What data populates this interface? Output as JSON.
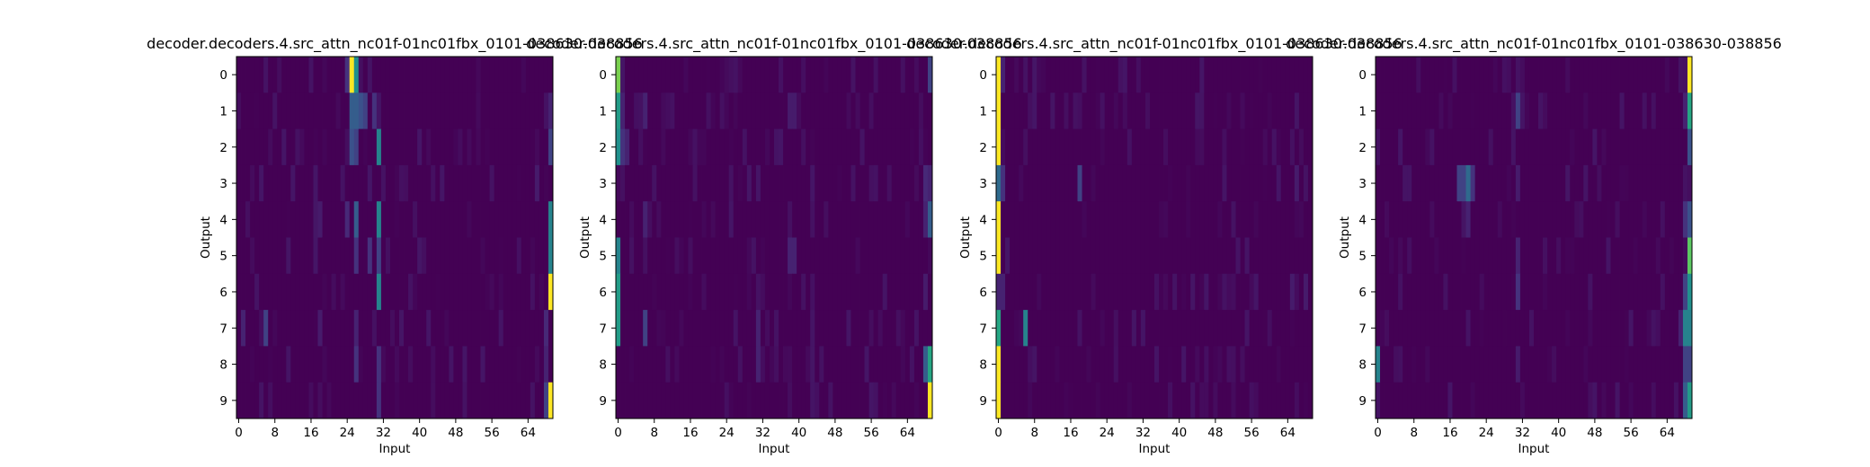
{
  "chart_data": [
    {
      "type": "heatmap",
      "title": "decoder.decoders.4.src_attn_nc01f-01nc01fbx_0101-038630-038856",
      "xlabel": "Input",
      "ylabel": "Output",
      "x_ticks": [
        "0",
        "8",
        "16",
        "24",
        "32",
        "40",
        "48",
        "56",
        "64"
      ],
      "y_ticks": [
        "0",
        "1",
        "2",
        "3",
        "4",
        "5",
        "6",
        "7",
        "8",
        "9"
      ],
      "xlim": [
        0,
        70
      ],
      "rows": 10,
      "columns": 70,
      "colormap": "viridis",
      "peaks": [
        {
          "row": 0,
          "cols": [
            [
              25,
              1.0
            ],
            [
              26,
              0.5
            ],
            [
              24,
              0.15
            ]
          ]
        },
        {
          "row": 1,
          "cols": [
            [
              25,
              0.3
            ],
            [
              26,
              0.3
            ],
            [
              27,
              0.25
            ],
            [
              28,
              0.2
            ],
            [
              30,
              0.15
            ],
            [
              69,
              0.1
            ]
          ]
        },
        {
          "row": 2,
          "cols": [
            [
              25,
              0.25
            ],
            [
              26,
              0.2
            ],
            [
              31,
              0.45
            ],
            [
              69,
              0.2
            ]
          ]
        },
        {
          "row": 3,
          "cols": [
            [
              5,
              0.06
            ],
            [
              17,
              0.06
            ],
            [
              29,
              0.06
            ],
            [
              45,
              0.06
            ],
            [
              66,
              0.08
            ]
          ]
        },
        {
          "row": 4,
          "cols": [
            [
              18,
              0.08
            ],
            [
              24,
              0.12
            ],
            [
              26,
              0.3
            ],
            [
              31,
              0.45
            ],
            [
              69,
              0.45
            ]
          ]
        },
        {
          "row": 5,
          "cols": [
            [
              26,
              0.15
            ],
            [
              29,
              0.15
            ],
            [
              31,
              0.2
            ],
            [
              69,
              0.45
            ]
          ]
        },
        {
          "row": 6,
          "cols": [
            [
              31,
              0.45
            ],
            [
              69,
              1.0
            ]
          ]
        },
        {
          "row": 7,
          "cols": [
            [
              1,
              0.1
            ],
            [
              6,
              0.2
            ],
            [
              18,
              0.08
            ],
            [
              26,
              0.1
            ],
            [
              68,
              0.12
            ]
          ]
        },
        {
          "row": 8,
          "cols": [
            [
              26,
              0.15
            ],
            [
              31,
              0.15
            ],
            [
              50,
              0.06
            ],
            [
              68,
              0.1
            ]
          ]
        },
        {
          "row": 9,
          "cols": [
            [
              31,
              0.15
            ],
            [
              69,
              1.0
            ],
            [
              68,
              0.2
            ]
          ]
        }
      ]
    },
    {
      "type": "heatmap",
      "title": "decoder.decoders.4.src_attn_nc01f-01nc01fbx_0101-038630-038856",
      "xlabel": "Input",
      "ylabel": "Output",
      "x_ticks": [
        "0",
        "8",
        "16",
        "24",
        "32",
        "40",
        "48",
        "56",
        "64"
      ],
      "y_ticks": [
        "0",
        "1",
        "2",
        "3",
        "4",
        "5",
        "6",
        "7",
        "8",
        "9"
      ],
      "xlim": [
        0,
        70
      ],
      "rows": 10,
      "columns": 70,
      "colormap": "viridis",
      "peaks": [
        {
          "row": 0,
          "cols": [
            [
              0,
              0.8
            ],
            [
              69,
              0.2
            ]
          ]
        },
        {
          "row": 1,
          "cols": [
            [
              0,
              0.55
            ],
            [
              1,
              0.1
            ],
            [
              6,
              0.1
            ],
            [
              38,
              0.08
            ],
            [
              39,
              0.08
            ]
          ]
        },
        {
          "row": 2,
          "cols": [
            [
              0,
              0.5
            ],
            [
              1,
              0.15
            ],
            [
              2,
              0.1
            ]
          ]
        },
        {
          "row": 3,
          "cols": [
            [
              8,
              0.05
            ],
            [
              31,
              0.06
            ],
            [
              68,
              0.12
            ],
            [
              69,
              0.1
            ]
          ]
        },
        {
          "row": 4,
          "cols": [
            [
              6,
              0.1
            ],
            [
              25,
              0.06
            ],
            [
              68,
              0.1
            ],
            [
              69,
              0.3
            ]
          ]
        },
        {
          "row": 5,
          "cols": [
            [
              0,
              0.45
            ],
            [
              38,
              0.1
            ],
            [
              39,
              0.1
            ]
          ]
        },
        {
          "row": 6,
          "cols": [
            [
              0,
              0.55
            ],
            [
              31,
              0.05
            ],
            [
              68,
              0.08
            ]
          ]
        },
        {
          "row": 7,
          "cols": [
            [
              0,
              0.55
            ],
            [
              6,
              0.2
            ],
            [
              31,
              0.1
            ]
          ]
        },
        {
          "row": 8,
          "cols": [
            [
              31,
              0.1
            ],
            [
              68,
              0.3
            ],
            [
              69,
              0.6
            ]
          ]
        },
        {
          "row": 9,
          "cols": [
            [
              69,
              1.0
            ]
          ]
        }
      ]
    },
    {
      "type": "heatmap",
      "title": "decoder.decoders.4.src_attn_nc01f-01nc01fbx_0101-038630-038856",
      "xlabel": "Input",
      "ylabel": "Output",
      "x_ticks": [
        "0",
        "8",
        "16",
        "24",
        "32",
        "40",
        "48",
        "56",
        "64"
      ],
      "y_ticks": [
        "0",
        "1",
        "2",
        "3",
        "4",
        "5",
        "6",
        "7",
        "8",
        "9"
      ],
      "xlim": [
        0,
        70
      ],
      "rows": 10,
      "columns": 70,
      "colormap": "viridis",
      "peaks": [
        {
          "row": 0,
          "cols": [
            [
              0,
              1.0
            ],
            [
              1,
              0.1
            ],
            [
              6,
              0.05
            ]
          ]
        },
        {
          "row": 1,
          "cols": [
            [
              0,
              1.0
            ]
          ]
        },
        {
          "row": 2,
          "cols": [
            [
              0,
              1.0
            ]
          ]
        },
        {
          "row": 3,
          "cols": [
            [
              0,
              0.35
            ],
            [
              1,
              0.15
            ],
            [
              18,
              0.2
            ],
            [
              62,
              0.06
            ],
            [
              66,
              0.08
            ]
          ]
        },
        {
          "row": 4,
          "cols": [
            [
              0,
              1.0
            ]
          ]
        },
        {
          "row": 5,
          "cols": [
            [
              0,
              1.0
            ]
          ]
        },
        {
          "row": 6,
          "cols": [
            [
              0,
              0.1
            ],
            [
              1,
              0.1
            ],
            [
              46,
              0.06
            ],
            [
              57,
              0.06
            ],
            [
              65,
              0.08
            ],
            [
              68,
              0.08
            ]
          ]
        },
        {
          "row": 7,
          "cols": [
            [
              0,
              0.6
            ],
            [
              6,
              0.45
            ],
            [
              18,
              0.05
            ]
          ]
        },
        {
          "row": 8,
          "cols": [
            [
              0,
              1.0
            ]
          ]
        },
        {
          "row": 9,
          "cols": [
            [
              0,
              1.0
            ]
          ]
        }
      ]
    },
    {
      "type": "heatmap",
      "title": "decoder.decoders.4.src_attn_nc01f-01nc01fbx_0101-038630-038856",
      "xlabel": "Input",
      "ylabel": "Output",
      "x_ticks": [
        "0",
        "8",
        "16",
        "24",
        "32",
        "40",
        "48",
        "56",
        "64"
      ],
      "y_ticks": [
        "0",
        "1",
        "2",
        "3",
        "4",
        "5",
        "6",
        "7",
        "8",
        "9"
      ],
      "xlim": [
        0,
        70
      ],
      "rows": 10,
      "columns": 70,
      "colormap": "viridis",
      "peaks": [
        {
          "row": 0,
          "cols": [
            [
              69,
              1.0
            ],
            [
              31,
              0.05
            ]
          ]
        },
        {
          "row": 1,
          "cols": [
            [
              31,
              0.2
            ],
            [
              69,
              0.6
            ],
            [
              68,
              0.1
            ]
          ]
        },
        {
          "row": 2,
          "cols": [
            [
              5,
              0.06
            ],
            [
              12,
              0.05
            ],
            [
              69,
              0.25
            ]
          ]
        },
        {
          "row": 3,
          "cols": [
            [
              18,
              0.2
            ],
            [
              19,
              0.2
            ],
            [
              20,
              0.35
            ],
            [
              21,
              0.15
            ],
            [
              31,
              0.08
            ]
          ]
        },
        {
          "row": 4,
          "cols": [
            [
              20,
              0.1
            ],
            [
              69,
              0.25
            ],
            [
              68,
              0.15
            ]
          ]
        },
        {
          "row": 5,
          "cols": [
            [
              31,
              0.1
            ],
            [
              69,
              0.75
            ]
          ]
        },
        {
          "row": 6,
          "cols": [
            [
              31,
              0.15
            ],
            [
              69,
              0.5
            ],
            [
              68,
              0.2
            ]
          ]
        },
        {
          "row": 7,
          "cols": [
            [
              68,
              0.45
            ],
            [
              69,
              0.45
            ],
            [
              67,
              0.1
            ]
          ]
        },
        {
          "row": 8,
          "cols": [
            [
              0,
              0.45
            ],
            [
              31,
              0.08
            ],
            [
              68,
              0.2
            ],
            [
              69,
              0.2
            ]
          ]
        },
        {
          "row": 9,
          "cols": [
            [
              0,
              0.05
            ],
            [
              68,
              0.3
            ],
            [
              69,
              0.55
            ]
          ]
        }
      ]
    }
  ]
}
